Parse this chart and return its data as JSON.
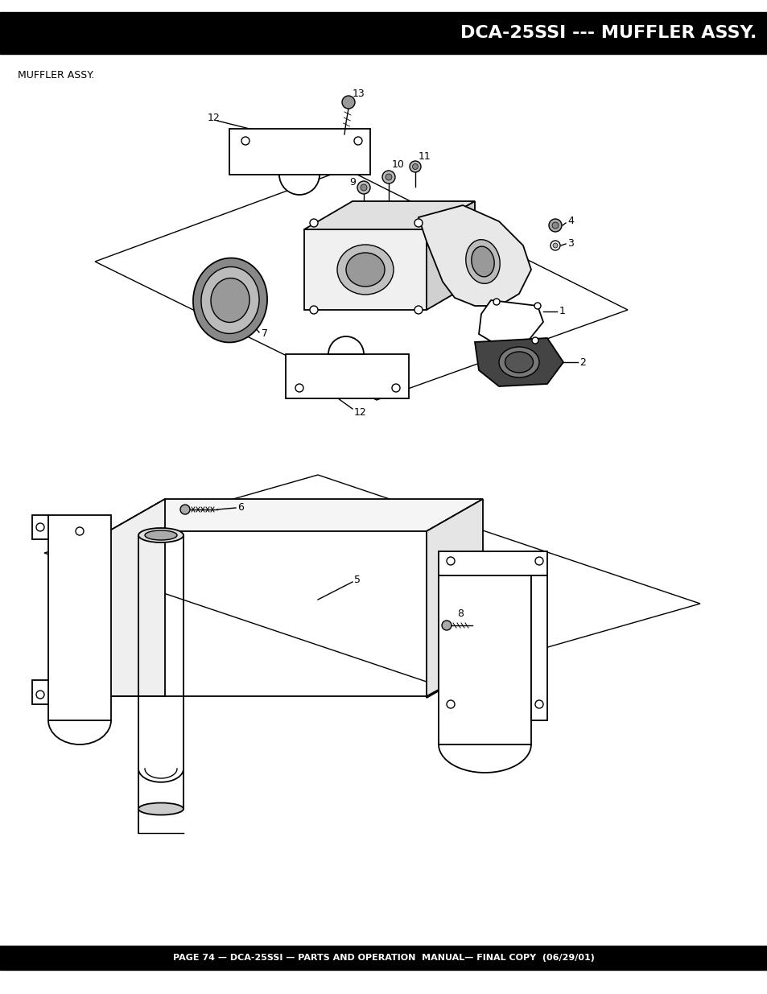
{
  "title": "DCA-25SSI --- MUFFLER ASSY.",
  "subtitle": "MUFFLER ASSY.",
  "footer": "PAGE 74 — DCA-25SSI — PARTS AND OPERATION  MANUAL— FINAL COPY  (06/29/01)",
  "header_bg": "#000000",
  "header_text_color": "#ffffff",
  "footer_bg": "#000000",
  "footer_text_color": "#ffffff",
  "bg_color": "#ffffff",
  "title_fontsize": 16,
  "subtitle_fontsize": 9,
  "footer_fontsize": 8,
  "fig_width": 9.54,
  "fig_height": 12.35
}
